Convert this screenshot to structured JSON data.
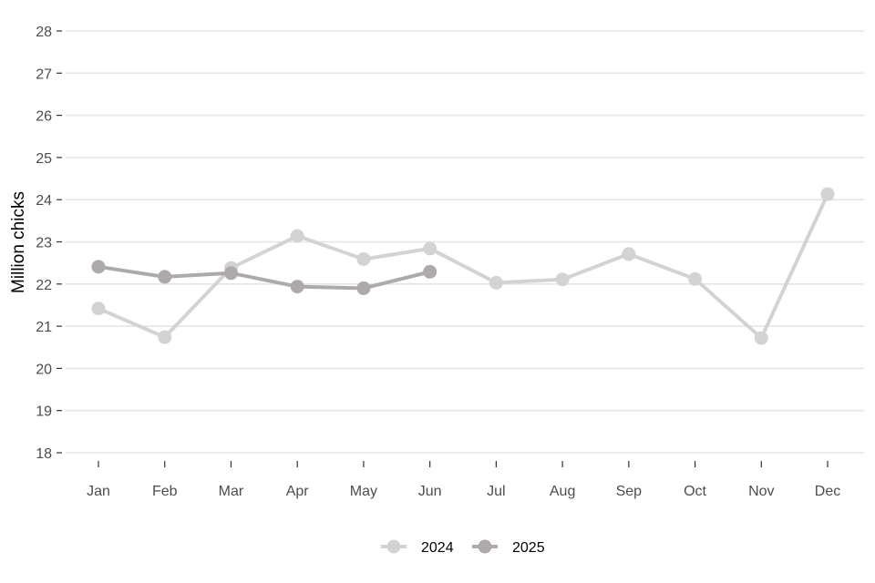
{
  "chart_data": {
    "type": "line",
    "title": "",
    "xlabel": "",
    "ylabel": "Million chicks",
    "categories": [
      "Jan",
      "Feb",
      "Mar",
      "Apr",
      "May",
      "Jun",
      "Jul",
      "Aug",
      "Sep",
      "Oct",
      "Nov",
      "Dec"
    ],
    "ylim": [
      18,
      28
    ],
    "yticks": [
      18,
      19,
      20,
      21,
      22,
      23,
      24,
      25,
      26,
      27,
      28
    ],
    "grid": "horizontal",
    "legend_position": "bottom",
    "series": [
      {
        "name": "2024",
        "color": "#d3d3d3",
        "values": [
          21.42,
          20.74,
          22.38,
          23.14,
          22.59,
          22.84,
          22.03,
          22.11,
          22.71,
          22.12,
          20.72,
          24.13
        ]
      },
      {
        "name": "2025",
        "color": "#aeaaaa",
        "values": [
          22.41,
          22.17,
          22.26,
          21.94,
          21.9,
          22.29,
          null,
          null,
          null,
          null,
          null,
          null
        ]
      }
    ]
  }
}
